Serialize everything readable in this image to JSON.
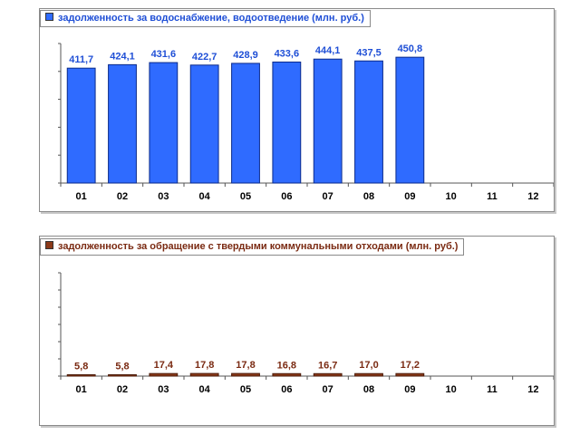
{
  "chart_data": [
    {
      "type": "bar",
      "categories": [
        "01",
        "02",
        "03",
        "04",
        "05",
        "06",
        "07",
        "08",
        "09",
        "10",
        "11",
        "12"
      ],
      "series": [
        {
          "name": "задолженность за водоснабжение, водоотведение (млн. руб.)",
          "values": [
            411.7,
            424.1,
            431.6,
            422.7,
            428.9,
            433.6,
            444.1,
            437.5,
            450.8,
            null,
            null,
            null
          ],
          "labels": [
            "411,7",
            "424,1",
            "431,6",
            "422,7",
            "428,9",
            "433,6",
            "444,1",
            "437,5",
            "450,8",
            "",
            "",
            ""
          ]
        }
      ],
      "ylim": [
        0,
        500
      ],
      "grid": false,
      "legend_position": "top-left",
      "colors": {
        "bar": "#2f6bff",
        "bar_edge": "#0a2a8a",
        "label": "#1f4fd6"
      }
    },
    {
      "type": "bar",
      "categories": [
        "01",
        "02",
        "03",
        "04",
        "05",
        "06",
        "07",
        "08",
        "09",
        "10",
        "11",
        "12"
      ],
      "series": [
        {
          "name": "задолженность за обращение с твердыми коммунальными отходами (млн. руб.)",
          "values": [
            5.8,
            5.8,
            17.4,
            17.8,
            17.8,
            16.8,
            16.7,
            17.0,
            17.2,
            null,
            null,
            null
          ],
          "labels": [
            "5,8",
            "5,8",
            "17,4",
            "17,8",
            "17,8",
            "16,8",
            "16,7",
            "17,0",
            "17,2",
            "",
            "",
            ""
          ]
        }
      ],
      "ylim": [
        0,
        700
      ],
      "grid": false,
      "legend_position": "top-left",
      "colors": {
        "bar": "#8b3a1a",
        "bar_edge": "#4a1a08",
        "label": "#7a2a12"
      }
    }
  ]
}
